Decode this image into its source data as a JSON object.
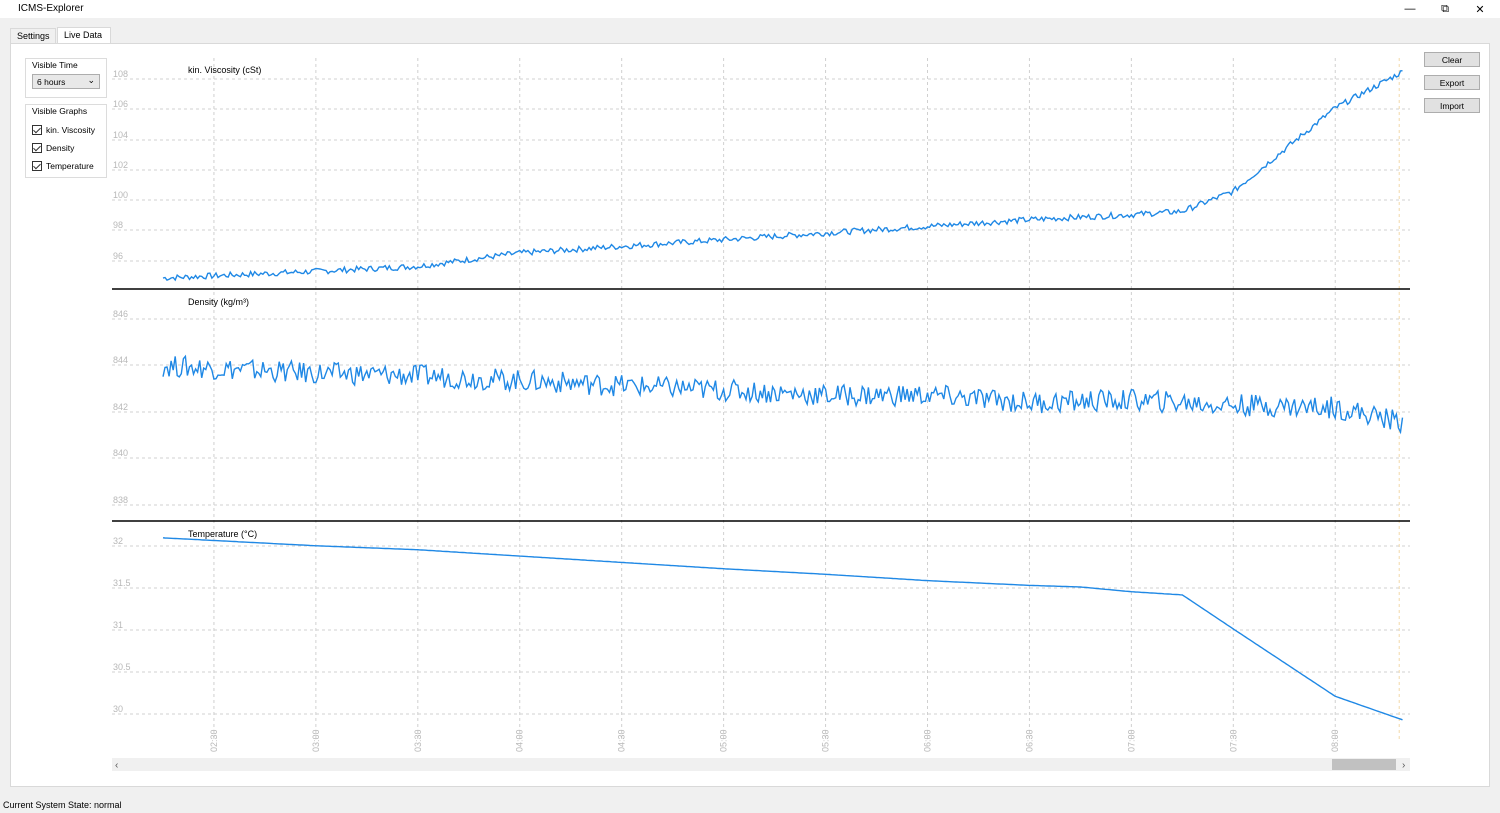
{
  "window": {
    "title": "ICMS-Explorer",
    "min_icon": "minimize-icon",
    "restore_icon": "restore-icon",
    "close_icon": "close-icon"
  },
  "tabs": [
    {
      "label": "Settings"
    },
    {
      "label": "Live Data"
    }
  ],
  "visible_time": {
    "label": "Visible Time",
    "value": "6 hours"
  },
  "visible_graphs": {
    "label": "Visible Graphs",
    "items": [
      {
        "label": "kin. Viscosity",
        "checked": true
      },
      {
        "label": "Density",
        "checked": true
      },
      {
        "label": "Temperature",
        "checked": true
      }
    ]
  },
  "buttons": {
    "clear": "Clear",
    "export": "Export",
    "import": "Import"
  },
  "status": "Current System State: normal",
  "colors": {
    "series": "#1f88e5",
    "grid": "#d0d0d0",
    "tick_text": "#b8b8b8"
  },
  "chart_data": [
    {
      "type": "line",
      "title": "kin. Viscosity (cSt)",
      "yticks": [
        "108",
        "106",
        "104",
        "102",
        "100",
        "98",
        "96"
      ],
      "ylim": [
        95.2,
        109
      ],
      "x": [
        "02:15",
        "03:00",
        "03:30",
        "04:00",
        "04:30",
        "05:00",
        "05:30",
        "06:00",
        "06:30",
        "07:00",
        "07:15",
        "07:30",
        "08:00",
        "08:20"
      ],
      "series": [
        {
          "values": [
            95.8,
            96.2,
            96.5,
            97.3,
            97.7,
            98.1,
            98.5,
            98.9,
            99.3,
            99.6,
            99.8,
            101.0,
            106.0,
            108.2
          ]
        }
      ]
    },
    {
      "type": "line",
      "title": "Density (kg/m³)",
      "yticks": [
        "846",
        "844",
        "842",
        "840",
        "838"
      ],
      "ylim": [
        837.3,
        846.7
      ],
      "x": [
        "02:15",
        "03:00",
        "03:30",
        "04:00",
        "04:30",
        "05:00",
        "05:30",
        "06:00",
        "06:30",
        "07:00",
        "07:30",
        "08:00",
        "08:20"
      ],
      "series": [
        {
          "values": [
            843.6,
            843.3,
            843.2,
            843.0,
            842.8,
            842.6,
            842.4,
            842.4,
            842.1,
            842.2,
            842.0,
            841.9,
            841.3
          ]
        }
      ]
    },
    {
      "type": "line",
      "title": "Temperature (°C)",
      "yticks": [
        "32",
        "31.5",
        "31",
        "30.5",
        "30"
      ],
      "ylim": [
        29.6,
        32.2
      ],
      "x": [
        "02:15",
        "03:00",
        "03:30",
        "04:00",
        "04:30",
        "05:00",
        "05:30",
        "06:00",
        "06:30",
        "06:45",
        "07:00",
        "07:15",
        "07:30",
        "08:00",
        "08:20"
      ],
      "series": [
        {
          "values": [
            32.0,
            31.9,
            31.85,
            31.77,
            31.69,
            31.61,
            31.54,
            31.46,
            31.4,
            31.38,
            31.32,
            31.28,
            30.85,
            30.0,
            29.7
          ]
        }
      ]
    }
  ],
  "x_ticks": [
    "02:30",
    "03:00",
    "03:30",
    "04:00",
    "04:30",
    "05:00",
    "05:30",
    "06:00",
    "06:30",
    "07:00",
    "07:30",
    "08:00"
  ]
}
